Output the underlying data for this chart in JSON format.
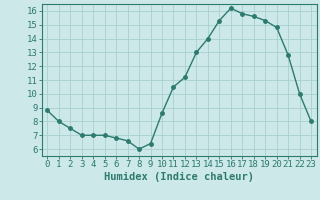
{
  "x": [
    0,
    1,
    2,
    3,
    4,
    5,
    6,
    7,
    8,
    9,
    10,
    11,
    12,
    13,
    14,
    15,
    16,
    17,
    18,
    19,
    20,
    21,
    22,
    23
  ],
  "y": [
    8.8,
    8.0,
    7.5,
    7.0,
    7.0,
    7.0,
    6.8,
    6.6,
    6.0,
    6.4,
    8.6,
    10.5,
    11.2,
    13.0,
    14.0,
    15.3,
    16.2,
    15.8,
    15.6,
    15.3,
    14.8,
    12.8,
    10.0,
    8.0
  ],
  "line_color": "#2d7a6e",
  "bg_color": "#cce8e8",
  "grid_color": "#a8d0d0",
  "xlabel": "Humidex (Indice chaleur)",
  "xlim": [
    -0.5,
    23.5
  ],
  "ylim": [
    5.5,
    16.5
  ],
  "yticks": [
    6,
    7,
    8,
    9,
    10,
    11,
    12,
    13,
    14,
    15,
    16
  ],
  "xticks": [
    0,
    1,
    2,
    3,
    4,
    5,
    6,
    7,
    8,
    9,
    10,
    11,
    12,
    13,
    14,
    15,
    16,
    17,
    18,
    19,
    20,
    21,
    22,
    23
  ],
  "marker": "o",
  "markersize": 2.5,
  "linewidth": 1.0,
  "tick_fontsize": 6.5,
  "xlabel_fontsize": 7.5
}
